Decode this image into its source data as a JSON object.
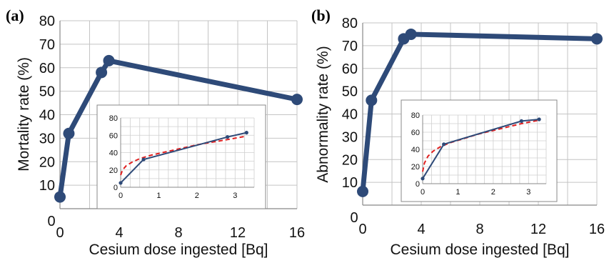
{
  "panel_labels": [
    "(a)",
    "(b)"
  ],
  "chart_data": [
    {
      "type": "line",
      "panel": "(a)",
      "xlabel": "Cesium dose ingested [Bq]",
      "ylabel": "Mortality rate (%)",
      "xlim": [
        0,
        16
      ],
      "ylim": [
        0,
        80
      ],
      "xticks": [
        0,
        4,
        8,
        12,
        16
      ],
      "yticks": [
        0,
        10,
        20,
        30,
        40,
        50,
        60,
        70,
        80
      ],
      "grid": true,
      "color": "#2e4a78",
      "series": [
        {
          "x": [
            0,
            0.6,
            2.8,
            3.3,
            16
          ],
          "y": [
            5,
            32,
            58,
            63,
            46.5
          ]
        }
      ],
      "inset": {
        "xlim": [
          0,
          3.5
        ],
        "ylim": [
          0,
          80
        ],
        "xticks": [
          0,
          1,
          2,
          3
        ],
        "yticks": [
          0,
          20,
          40,
          60,
          80
        ],
        "grid": true,
        "series": [
          {
            "style": "solid",
            "color": "#2e4a78",
            "x": [
              0,
              0.6,
              2.8,
              3.3
            ],
            "y": [
              5,
              32,
              58,
              63
            ]
          }
        ],
        "fit": {
          "style": "dashed",
          "color": "#e02020",
          "x": [
            0,
            0.05,
            0.15,
            0.3,
            0.5,
            0.8,
            1.2,
            1.6,
            2.0,
            2.4,
            2.8,
            3.3
          ],
          "y": [
            14,
            20,
            25,
            29,
            33,
            37,
            41,
            45,
            49,
            52,
            55,
            59
          ]
        }
      }
    },
    {
      "type": "line",
      "panel": "(b)",
      "xlabel": "Cesium dose ingested [Bq]",
      "ylabel": "Abnormality rate (%)",
      "xlim": [
        0,
        16
      ],
      "ylim": [
        0,
        80
      ],
      "xticks": [
        0,
        4,
        8,
        12,
        16
      ],
      "yticks": [
        0,
        10,
        20,
        30,
        40,
        50,
        60,
        70,
        80
      ],
      "grid": true,
      "color": "#2e4a78",
      "series": [
        {
          "x": [
            0,
            0.6,
            2.8,
            3.3,
            16
          ],
          "y": [
            6,
            46,
            73,
            75,
            73
          ]
        }
      ],
      "inset": {
        "xlim": [
          0,
          3.5
        ],
        "ylim": [
          0,
          80
        ],
        "xticks": [
          0,
          1,
          2,
          3
        ],
        "yticks": [
          0,
          20,
          40,
          60,
          80
        ],
        "grid": true,
        "series": [
          {
            "style": "solid",
            "color": "#2e4a78",
            "x": [
              0,
              0.6,
              2.8,
              3.3
            ],
            "y": [
              6,
              46,
              73,
              75
            ]
          }
        ],
        "fit": {
          "style": "dashed",
          "color": "#e02020",
          "x": [
            0,
            0.05,
            0.15,
            0.3,
            0.5,
            0.8,
            1.2,
            1.6,
            2.0,
            2.4,
            2.8,
            3.3
          ],
          "y": [
            14,
            24,
            32,
            38,
            43,
            48,
            53,
            58,
            62,
            66,
            70,
            74
          ]
        }
      }
    }
  ]
}
